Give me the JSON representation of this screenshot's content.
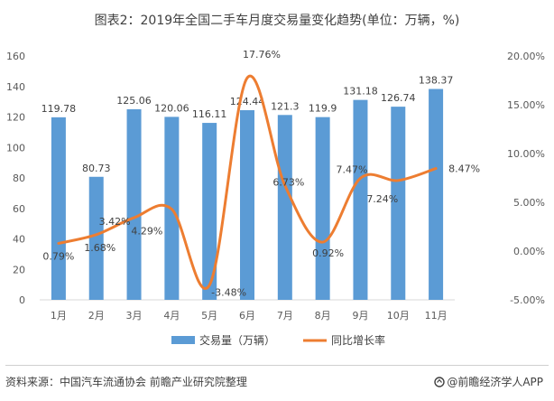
{
  "title": "图表2：2019年全国二手车月度交易量变化趋势(单位：万辆，%)",
  "chart_data": {
    "type": "bar+line",
    "categories": [
      "1月",
      "2月",
      "3月",
      "4月",
      "5月",
      "6月",
      "7月",
      "8月",
      "9月",
      "10月",
      "11月"
    ],
    "series": [
      {
        "name": "交易量（万辆）",
        "type": "bar",
        "axis": "left",
        "color": "#5b9bd5",
        "values": [
          119.78,
          80.73,
          125.06,
          120.06,
          116.11,
          124.44,
          121.3,
          119.9,
          131.18,
          126.74,
          138.37
        ],
        "labels": [
          "119.78",
          "80.73",
          "125.06",
          "120.06",
          "116.11",
          "124.44",
          "121.3",
          "119.9",
          "131.18",
          "126.74",
          "138.37"
        ]
      },
      {
        "name": "同比增长率",
        "type": "line",
        "axis": "right",
        "color": "#ed7d31",
        "smooth": true,
        "values": [
          0.79,
          1.68,
          3.42,
          4.29,
          -3.48,
          17.76,
          6.73,
          0.92,
          7.47,
          7.24,
          8.47
        ],
        "labels": [
          "0.79%",
          "1.68%",
          "3.42%",
          "4.29%",
          "-3.48%",
          "17.76%",
          "6.73%",
          "0.92%",
          "7.47%",
          "7.24%",
          "8.47%"
        ]
      }
    ],
    "y_left": {
      "min": 0,
      "max": 160,
      "ticks": [
        0,
        20,
        40,
        60,
        80,
        100,
        120,
        140,
        160
      ],
      "tick_labels": [
        "0",
        "20",
        "40",
        "60",
        "80",
        "100",
        "120",
        "140",
        "160"
      ]
    },
    "y_right": {
      "min": -5,
      "max": 20,
      "ticks": [
        -5,
        0,
        5,
        10,
        15,
        20
      ],
      "tick_labels": [
        "-5.00%",
        "0.00%",
        "5.00%",
        "10.00%",
        "15.00%",
        "20.00%"
      ]
    },
    "grid": false,
    "legend_position": "bottom"
  },
  "footer": {
    "source": "资料来源：中国汽车流通协会 前瞻产业研究院整理",
    "brand": "@前瞻经济学人APP"
  }
}
